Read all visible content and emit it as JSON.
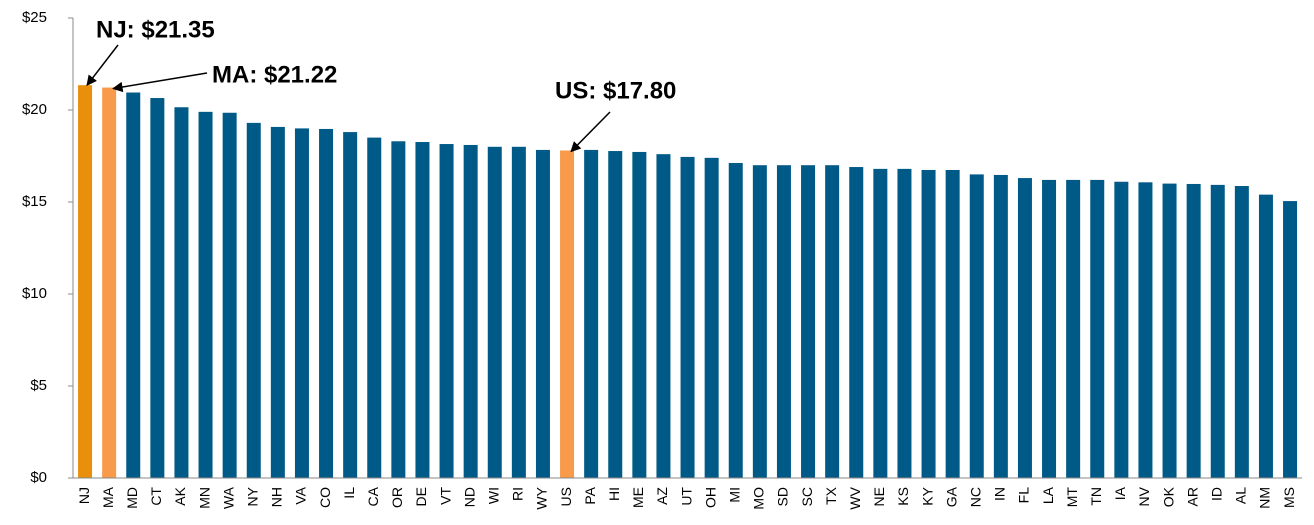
{
  "chart_data": {
    "type": "bar",
    "categories": [
      "NJ",
      "MA",
      "MD",
      "CT",
      "AK",
      "MN",
      "WA",
      "NY",
      "NH",
      "VA",
      "CO",
      "IL",
      "CA",
      "OR",
      "DE",
      "VT",
      "ND",
      "WI",
      "RI",
      "WY",
      "US",
      "PA",
      "HI",
      "ME",
      "AZ",
      "UT",
      "OH",
      "MI",
      "MO",
      "SD",
      "SC",
      "TX",
      "WV",
      "NE",
      "KS",
      "KY",
      "GA",
      "NC",
      "IN",
      "FL",
      "LA",
      "MT",
      "TN",
      "IA",
      "NV",
      "OK",
      "AR",
      "ID",
      "AL",
      "NM",
      "MS"
    ],
    "values": [
      21.35,
      21.22,
      20.95,
      20.65,
      20.15,
      19.9,
      19.85,
      19.3,
      19.08,
      19.0,
      18.97,
      18.8,
      18.5,
      18.3,
      18.26,
      18.15,
      18.1,
      18.0,
      18.0,
      17.83,
      17.8,
      17.83,
      17.77,
      17.72,
      17.6,
      17.45,
      17.4,
      17.12,
      17.0,
      17.0,
      17.0,
      17.0,
      16.9,
      16.8,
      16.8,
      16.74,
      16.74,
      16.5,
      16.47,
      16.3,
      16.2,
      16.2,
      16.2,
      16.1,
      16.07,
      16.0,
      15.98,
      15.93,
      15.87,
      15.4,
      15.05
    ],
    "colors": [
      "#e8900c",
      "#f79a4a",
      "#005a87",
      "#005a87",
      "#005a87",
      "#005a87",
      "#005a87",
      "#005a87",
      "#005a87",
      "#005a87",
      "#005a87",
      "#005a87",
      "#005a87",
      "#005a87",
      "#005a87",
      "#005a87",
      "#005a87",
      "#005a87",
      "#005a87",
      "#005a87",
      "#f79a4a",
      "#005a87",
      "#005a87",
      "#005a87",
      "#005a87",
      "#005a87",
      "#005a87",
      "#005a87",
      "#005a87",
      "#005a87",
      "#005a87",
      "#005a87",
      "#005a87",
      "#005a87",
      "#005a87",
      "#005a87",
      "#005a87",
      "#005a87",
      "#005a87",
      "#005a87",
      "#005a87",
      "#005a87",
      "#005a87",
      "#005a87",
      "#005a87",
      "#005a87",
      "#005a87",
      "#005a87",
      "#005a87",
      "#005a87",
      "#005a87"
    ],
    "ylim": [
      0,
      25
    ],
    "yticks": [
      {
        "value": 0,
        "label": "$0"
      },
      {
        "value": 5,
        "label": "$5"
      },
      {
        "value": 10,
        "label": "$10"
      },
      {
        "value": 15,
        "label": "$15"
      },
      {
        "value": 20,
        "label": "$20"
      },
      {
        "value": 25,
        "label": "$25"
      }
    ],
    "annotations": [
      "NJ: $21.35",
      "MA: $21.22",
      "US: $17.80"
    ]
  }
}
